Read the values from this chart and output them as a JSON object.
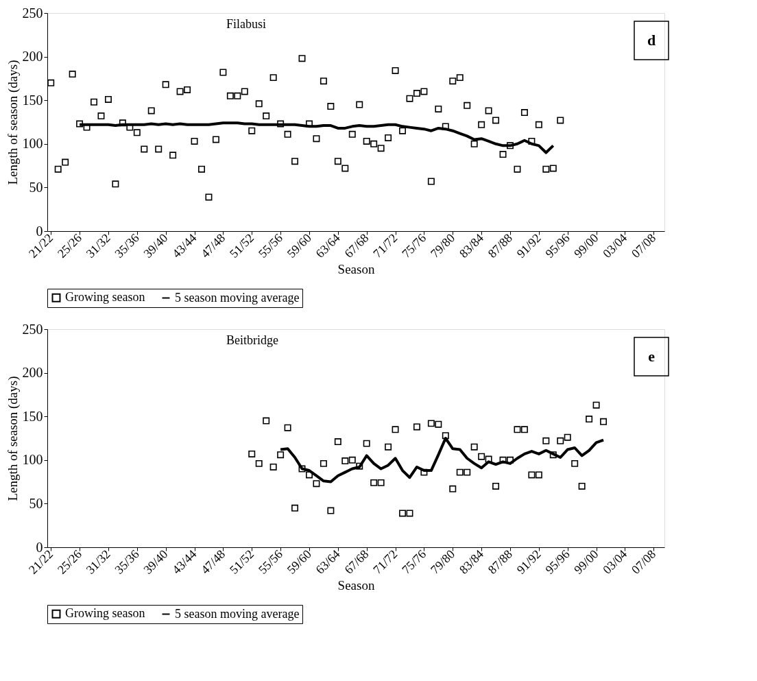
{
  "chart_data": [
    {
      "type": "scatter",
      "title": "Filabusi",
      "xlabel": "Season",
      "ylabel": "Length of season (days)",
      "annotations": [
        "d"
      ],
      "categories": [
        "21/22",
        null,
        null,
        null,
        "25/26",
        null,
        null,
        null,
        "31/32",
        null,
        null,
        null,
        "35/36",
        null,
        null,
        null,
        "39/40",
        null,
        null,
        null,
        "43/44",
        null,
        null,
        null,
        "47/48",
        null,
        null,
        null,
        "51/52",
        null,
        null,
        null,
        "55/56",
        null,
        null,
        null,
        "59/60",
        null,
        null,
        null,
        "63/64",
        null,
        null,
        null,
        "67/68",
        null,
        null,
        null,
        "71/72",
        null,
        null,
        null,
        "75/76",
        null,
        null,
        null,
        "79/80",
        null,
        null,
        null,
        "83/84",
        null,
        null,
        null,
        "87/88",
        null,
        null,
        null,
        "91/92",
        null,
        null,
        null,
        "95/96",
        null,
        null,
        null,
        "99/00",
        null,
        null,
        null,
        "03/04",
        null,
        null,
        null,
        "07/08",
        null
      ],
      "ylim": [
        0,
        250
      ],
      "yticks": [
        0,
        50,
        100,
        150,
        200,
        250
      ],
      "grid": false,
      "legend": "bottom",
      "series": [
        {
          "name": "Growing season",
          "marker": "square",
          "color": "#000000",
          "values": [
            170,
            71,
            79,
            180,
            123,
            119,
            148,
            132,
            151,
            54,
            124,
            119,
            113,
            94,
            138,
            94,
            168,
            87,
            160,
            162,
            103,
            71,
            39,
            105,
            182,
            155,
            155,
            160,
            115,
            146,
            132,
            176,
            123,
            111,
            80,
            198,
            123,
            106,
            172,
            143,
            80,
            72,
            111,
            145,
            103,
            100,
            95,
            107,
            184,
            115,
            152,
            158,
            160,
            57,
            140,
            120,
            172,
            176,
            144,
            100,
            122,
            138,
            127,
            88,
            98,
            71,
            136,
            103,
            122,
            71,
            72,
            127,
            null,
            null,
            null,
            null,
            null,
            null,
            null,
            null,
            null,
            null,
            null,
            null,
            null,
            null
          ]
        },
        {
          "name": "5 season moving average",
          "type": "line",
          "line_style": "solid",
          "color": "#000000",
          "values": [
            null,
            null,
            null,
            null,
            122,
            122,
            122,
            122,
            122,
            121,
            122,
            122,
            122,
            122,
            123,
            122,
            123,
            122,
            123,
            122,
            122,
            122,
            122,
            123,
            124,
            124,
            124,
            123,
            123,
            122,
            122,
            122,
            122,
            122,
            122,
            121,
            120,
            120,
            121,
            121,
            118,
            118,
            120,
            121,
            120,
            120,
            121,
            122,
            122,
            120,
            119,
            118,
            117,
            115,
            118,
            117,
            115,
            112,
            109,
            105,
            106,
            103,
            100,
            98,
            98,
            100,
            104,
            100,
            98,
            90,
            98,
            null,
            null,
            null,
            null,
            null,
            null,
            null,
            null,
            null,
            null,
            null,
            null,
            null,
            null,
            null
          ]
        }
      ]
    },
    {
      "type": "scatter",
      "title": "Beitbridge",
      "xlabel": "Season",
      "ylabel": "Length of season (days)",
      "annotations": [
        "e"
      ],
      "categories": [
        "21/22",
        null,
        null,
        null,
        "25/26",
        null,
        null,
        null,
        "31/32",
        null,
        null,
        null,
        "35/36",
        null,
        null,
        null,
        "39/40",
        null,
        null,
        null,
        "43/44",
        null,
        null,
        null,
        "47/48",
        null,
        null,
        null,
        "51/52",
        null,
        null,
        null,
        "55/56",
        null,
        null,
        null,
        "59/60",
        null,
        null,
        null,
        "63/64",
        null,
        null,
        null,
        "67/68",
        null,
        null,
        null,
        "71/72",
        null,
        null,
        null,
        "75/76",
        null,
        null,
        null,
        "79/80",
        null,
        null,
        null,
        "83/84",
        null,
        null,
        null,
        "87/88",
        null,
        null,
        null,
        "91/92",
        null,
        null,
        null,
        "95/96",
        null,
        null,
        null,
        "99/00",
        null,
        null,
        null,
        "03/04",
        null,
        null,
        null,
        "07/08",
        null
      ],
      "ylim": [
        0,
        250
      ],
      "yticks": [
        0,
        50,
        100,
        150,
        200,
        250
      ],
      "grid": false,
      "legend": "bottom",
      "series": [
        {
          "name": "Growing season",
          "marker": "square",
          "color": "#000000",
          "values": [
            null,
            null,
            null,
            null,
            null,
            null,
            null,
            null,
            null,
            null,
            null,
            null,
            null,
            null,
            null,
            null,
            null,
            null,
            null,
            null,
            null,
            null,
            null,
            null,
            null,
            null,
            null,
            null,
            107,
            96,
            145,
            92,
            106,
            137,
            45,
            90,
            83,
            73,
            96,
            42,
            121,
            99,
            100,
            93,
            119,
            74,
            74,
            115,
            135,
            39,
            39,
            138,
            86,
            142,
            141,
            128,
            67,
            86,
            86,
            115,
            104,
            101,
            70,
            100,
            100,
            135,
            135,
            83,
            83,
            122,
            106,
            122,
            126,
            96,
            70,
            147,
            163,
            144,
            null,
            null,
            null,
            null,
            null,
            null,
            null,
            null
          ]
        },
        {
          "name": "5 season moving average",
          "type": "line",
          "line_style": "solid",
          "color": "#000000",
          "values": [
            null,
            null,
            null,
            null,
            null,
            null,
            null,
            null,
            null,
            null,
            null,
            null,
            null,
            null,
            null,
            null,
            null,
            null,
            null,
            null,
            null,
            null,
            null,
            null,
            null,
            null,
            null,
            null,
            null,
            null,
            null,
            null,
            112,
            113,
            103,
            90,
            88,
            82,
            76,
            75,
            82,
            86,
            90,
            92,
            105,
            96,
            90,
            94,
            102,
            88,
            80,
            92,
            88,
            88,
            106,
            125,
            113,
            112,
            102,
            96,
            91,
            98,
            95,
            98,
            96,
            102,
            107,
            110,
            107,
            111,
            107,
            103,
            112,
            114,
            105,
            111,
            120,
            123,
            null,
            null,
            null,
            null,
            null,
            null,
            null,
            null
          ]
        }
      ]
    }
  ]
}
